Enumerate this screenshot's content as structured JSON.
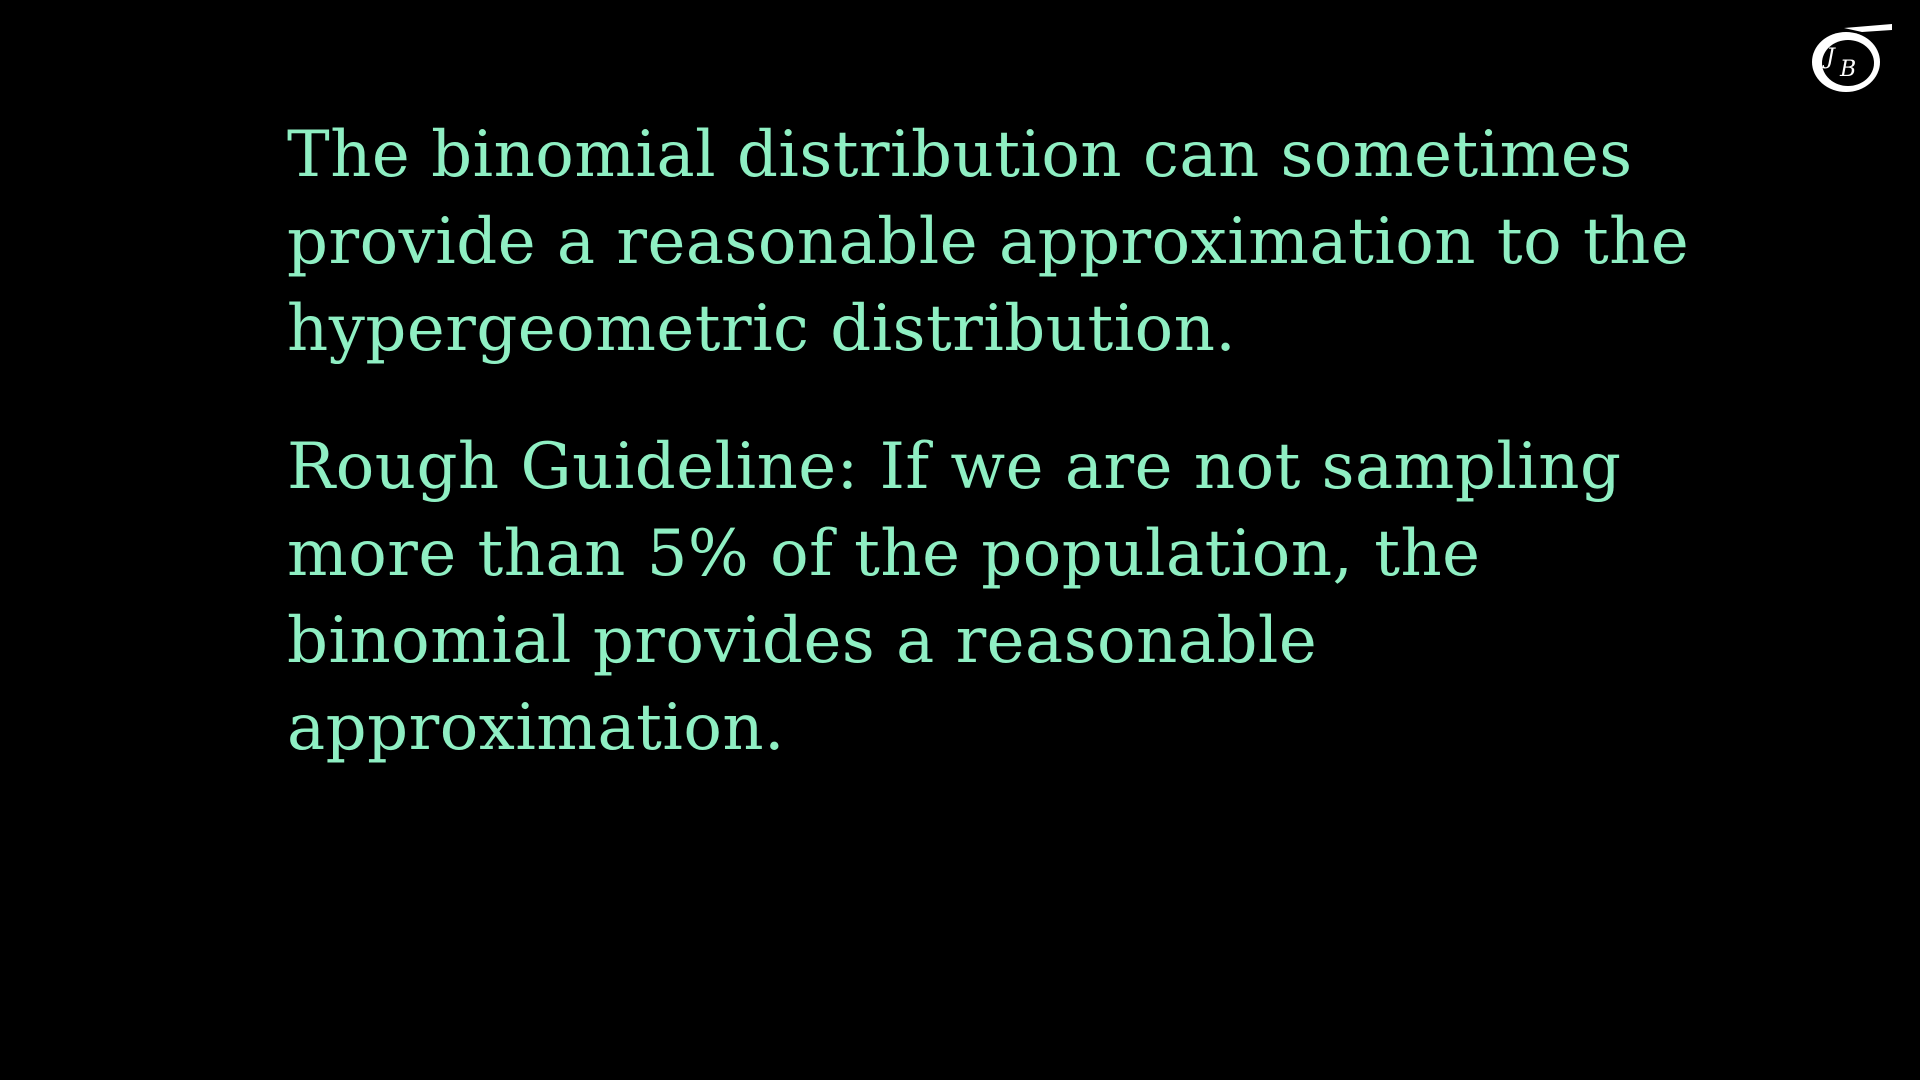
{
  "slide": {
    "paragraph1": [
      "The binomial distribution can sometimes",
      "provide a reasonable approximation to the",
      "hypergeometric distribution."
    ],
    "paragraph2": [
      "Rough Guideline: If we are not sampling",
      "more than 5% of the population, the",
      "binomial provides a reasonable",
      "approximation."
    ]
  },
  "logo": {
    "icon": "sigma-logo-icon",
    "letters": "JB"
  },
  "colors": {
    "background": "#000000",
    "text": "#8fefc3",
    "logo": "#ffffff"
  }
}
